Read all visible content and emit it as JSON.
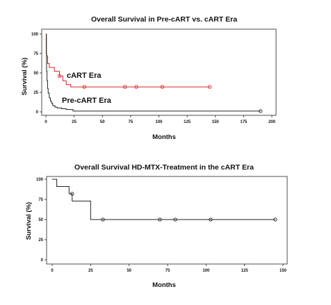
{
  "chart_data": [
    {
      "type": "line",
      "title": "Overall Survival in Pre-cART vs. cART Era",
      "xlabel": "Months",
      "ylabel": "Survival (%)",
      "xlim": [
        0,
        200
      ],
      "ylim": [
        0,
        100
      ],
      "xticks": [
        0,
        25,
        50,
        75,
        100,
        125,
        150,
        175,
        200
      ],
      "yticks": [
        0,
        25,
        50,
        75,
        100
      ],
      "grid": false,
      "legend": "none",
      "series": [
        {
          "name": "cART Era",
          "color": "#e02020",
          "step": [
            [
              0,
              100
            ],
            [
              0.5,
              72
            ],
            [
              1.5,
              62
            ],
            [
              3,
              57
            ],
            [
              7,
              57
            ],
            [
              7.5,
              52
            ],
            [
              12,
              52
            ],
            [
              12,
              46
            ],
            [
              15,
              46
            ],
            [
              15,
              40
            ],
            [
              18,
              40
            ],
            [
              18,
              35
            ],
            [
              22,
              35
            ],
            [
              22,
              32
            ],
            [
              34,
              32
            ],
            [
              70,
              32
            ],
            [
              80,
              32
            ],
            [
              103,
              32
            ],
            [
              145,
              32
            ]
          ],
          "censored": [
            [
              12,
              46
            ],
            [
              34,
              32
            ],
            [
              70,
              32
            ],
            [
              80,
              32
            ],
            [
              103,
              32
            ],
            [
              145,
              32
            ]
          ]
        },
        {
          "name": "Pre-cART Era",
          "color": "#222222",
          "step": [
            [
              0,
              100
            ],
            [
              0.3,
              75
            ],
            [
              0.6,
              52
            ],
            [
              1,
              40
            ],
            [
              1.5,
              30
            ],
            [
              2,
              24
            ],
            [
              3,
              18
            ],
            [
              4,
              14
            ],
            [
              5,
              11
            ],
            [
              6,
              8
            ],
            [
              8,
              6
            ],
            [
              10,
              5
            ],
            [
              14,
              4
            ],
            [
              18,
              3
            ],
            [
              24,
              2
            ],
            [
              24,
              1
            ],
            [
              190,
              1
            ]
          ],
          "censored": [
            [
              190,
              1
            ]
          ]
        }
      ]
    },
    {
      "type": "line",
      "title": "Overall Survival HD-MTX-Treatment in the cART Era",
      "xlabel": "Months",
      "ylabel": "Survival (%)",
      "xlim": [
        0,
        150
      ],
      "ylim": [
        0,
        100
      ],
      "xticks": [
        0,
        25,
        50,
        75,
        100,
        125,
        150
      ],
      "yticks": [
        0,
        25,
        50,
        75,
        100
      ],
      "grid": false,
      "legend": "none",
      "series": [
        {
          "color": "#222222",
          "step": [
            [
              0,
              100
            ],
            [
              3,
              100
            ],
            [
              3,
              91
            ],
            [
              11,
              91
            ],
            [
              11,
              82
            ],
            [
              13,
              82
            ],
            [
              13,
              73
            ],
            [
              25,
              73
            ],
            [
              25,
              50
            ],
            [
              33,
              50
            ],
            [
              70,
              50
            ],
            [
              80,
              50
            ],
            [
              103,
              50
            ],
            [
              145,
              50
            ]
          ],
          "censored": [
            [
              13,
              82
            ],
            [
              33,
              50
            ],
            [
              70,
              50
            ],
            [
              80,
              50
            ],
            [
              103,
              50
            ],
            [
              145,
              50
            ]
          ]
        }
      ]
    }
  ]
}
